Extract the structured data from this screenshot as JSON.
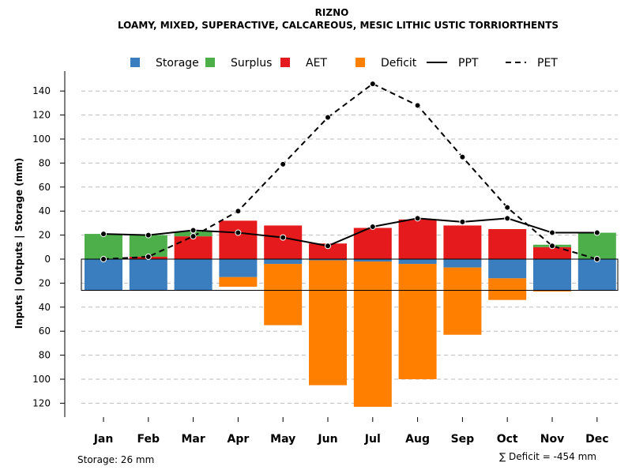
{
  "chart_data": {
    "type": "bar",
    "title": "RIZNO",
    "subtitle": "LOAMY, MIXED, SUPERACTIVE, CALCAREOUS, MESIC LITHIC USTIC TORRIORTHENTS",
    "ylabel": "Inputs | Outputs | Storage    (mm)",
    "categories": [
      "Jan",
      "Feb",
      "Mar",
      "Apr",
      "May",
      "Jun",
      "Jul",
      "Aug",
      "Sep",
      "Oct",
      "Nov",
      "Dec"
    ],
    "yticks_up": [
      "140",
      "120",
      "100",
      "80",
      "60",
      "40",
      "20",
      "0"
    ],
    "yticks_up_values": [
      140,
      120,
      100,
      80,
      60,
      40,
      20,
      0
    ],
    "yticks_down": [
      "20",
      "40",
      "60",
      "80",
      "100",
      "120"
    ],
    "yticks_down_values": [
      20,
      40,
      60,
      80,
      100,
      120
    ],
    "ylim": [
      -130,
      150
    ],
    "storage_capacity": 26,
    "legend": [
      {
        "label": "Storage",
        "kind": "box",
        "color": "#3A7EBF"
      },
      {
        "label": "Surplus",
        "kind": "box",
        "color": "#4DAF4A"
      },
      {
        "label": "AET",
        "kind": "box",
        "color": "#E41A1C"
      },
      {
        "label": "Deficit",
        "kind": "box",
        "color": "#FF7F00"
      },
      {
        "label": "PPT",
        "kind": "line-solid",
        "color": "#000000"
      },
      {
        "label": "PET",
        "kind": "line-dashed",
        "color": "#000000"
      }
    ],
    "colors": {
      "storage": "#3A7EBF",
      "surplus": "#4DAF4A",
      "aet": "#E41A1C",
      "deficit": "#FF7F00"
    },
    "series": {
      "storage_below": [
        26,
        26,
        26,
        15,
        4,
        1,
        2,
        4,
        7,
        16,
        26,
        26
      ],
      "surplus": [
        21,
        18,
        4,
        0,
        0,
        0,
        0,
        0,
        0,
        0,
        2,
        22
      ],
      "aet": [
        0,
        2,
        19,
        32,
        28,
        13,
        26,
        33,
        28,
        25,
        10,
        0
      ],
      "deficit": [
        0,
        0,
        0,
        8,
        51,
        104,
        121,
        96,
        56,
        18,
        1,
        0
      ],
      "ppt": [
        21,
        20,
        24,
        22,
        18,
        11,
        27,
        34,
        31,
        34,
        22,
        22
      ],
      "pet": [
        0,
        2,
        19,
        40,
        79,
        118,
        146,
        128,
        85,
        43,
        11,
        0
      ]
    },
    "footer_left": "Storage: 26 mm",
    "footer_right": "∑ Deficit = -454 mm"
  }
}
